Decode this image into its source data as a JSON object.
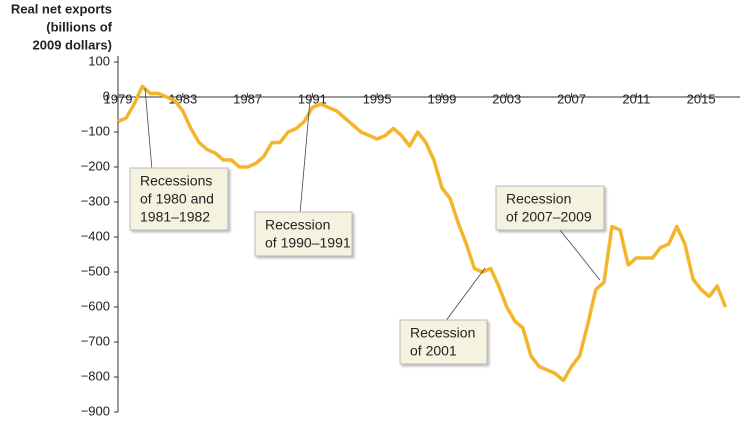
{
  "chart_data": {
    "type": "line",
    "y_label": [
      "Real net exports",
      "(billions of",
      "2009 dollars)"
    ],
    "x": [
      1979.0,
      1979.5,
      1980.0,
      1980.5,
      1981.0,
      1981.5,
      1982.0,
      1982.5,
      1983.0,
      1983.5,
      1984.0,
      1984.5,
      1985.0,
      1985.5,
      1986.0,
      1986.5,
      1987.0,
      1987.5,
      1988.0,
      1988.5,
      1989.0,
      1989.5,
      1990.0,
      1990.5,
      1991.0,
      1991.5,
      1992.0,
      1992.5,
      1993.0,
      1993.5,
      1994.0,
      1994.5,
      1995.0,
      1995.5,
      1996.0,
      1996.5,
      1997.0,
      1997.5,
      1998.0,
      1998.5,
      1999.0,
      1999.5,
      2000.0,
      2000.5,
      2001.0,
      2001.5,
      2002.0,
      2002.5,
      2003.0,
      2003.5,
      2004.0,
      2004.5,
      2005.0,
      2005.5,
      2006.0,
      2006.5,
      2007.0,
      2007.5,
      2008.0,
      2008.5,
      2009.0,
      2009.5,
      2010.0,
      2010.5,
      2011.0,
      2011.5,
      2012.0,
      2012.5,
      2013.0,
      2013.5,
      2014.0,
      2014.5,
      2015.0,
      2015.5,
      2016.0,
      2016.5
    ],
    "series": [
      {
        "name": "Real net exports",
        "color": "#f3b52c",
        "values": [
          -70,
          -60,
          -20,
          30,
          10,
          10,
          0,
          -10,
          -40,
          -90,
          -130,
          -150,
          -160,
          -180,
          -180,
          -200,
          -200,
          -190,
          -170,
          -130,
          -130,
          -100,
          -90,
          -70,
          -30,
          -20,
          -30,
          -40,
          -60,
          -80,
          -100,
          -110,
          -120,
          -110,
          -90,
          -110,
          -140,
          -100,
          -130,
          -180,
          -260,
          -290,
          -360,
          -420,
          -490,
          -500,
          -490,
          -540,
          -600,
          -640,
          -660,
          -740,
          -770,
          -780,
          -790,
          -810,
          -770,
          -740,
          -650,
          -550,
          -530,
          -370,
          -380,
          -480,
          -460,
          -460,
          -460,
          -430,
          -420,
          -370,
          -420,
          -520,
          -550,
          -570,
          -540,
          -600
        ]
      }
    ],
    "xlim": [
      1979,
      2017.4
    ],
    "xticks": [
      1979,
      1983,
      1987,
      1991,
      1995,
      1999,
      2003,
      2007,
      2011,
      2015
    ],
    "ylim": [
      -900,
      100
    ],
    "yticks": [
      100,
      0,
      {
        "value": -100,
        "label": "−100"
      },
      {
        "value": -200,
        "label": "−200"
      },
      {
        "value": -300,
        "label": "−300"
      },
      {
        "value": -400,
        "label": "−400"
      },
      {
        "value": -500,
        "label": "−500"
      },
      {
        "value": -600,
        "label": "−600"
      },
      {
        "value": -700,
        "label": "−700"
      },
      {
        "value": -800,
        "label": "−800"
      },
      {
        "value": -900,
        "label": "−900"
      }
    ],
    "annotations": [
      {
        "lines": [
          "Recessions",
          "of 1980 and",
          "1981–1982"
        ]
      },
      {
        "lines": [
          "Recession",
          "of 1990–1991"
        ]
      },
      {
        "lines": [
          "Recession",
          "of 2001"
        ]
      },
      {
        "lines": [
          "Recession",
          "of 2007–2009"
        ]
      }
    ]
  }
}
